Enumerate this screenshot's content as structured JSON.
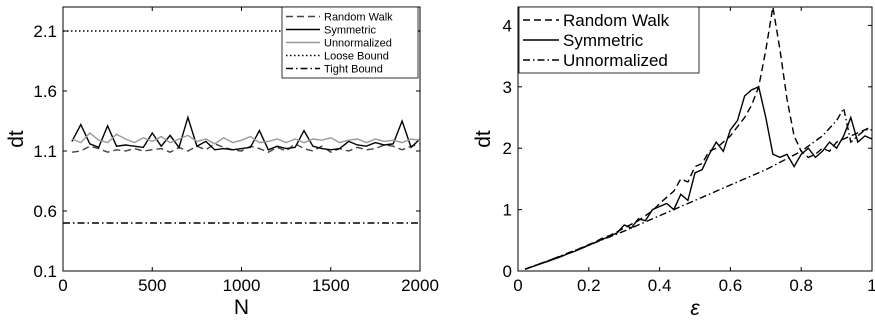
{
  "chart_data": [
    {
      "type": "line",
      "xlabel": "N",
      "ylabel": "dt",
      "xlim": [
        0,
        2000
      ],
      "ylim": [
        0.1,
        2.3
      ],
      "xticks": [
        "0",
        "500",
        "1000",
        "1500",
        "2000"
      ],
      "yticks": [
        "0.1",
        "0.6",
        "1.1",
        "1.6",
        "2.1"
      ],
      "legend_position": "top-right",
      "grid": false,
      "series": [
        {
          "name": "Random Walk",
          "style": "dashed",
          "color": "#444444",
          "x": [
            50,
            100,
            150,
            200,
            250,
            300,
            350,
            400,
            450,
            500,
            550,
            600,
            650,
            700,
            750,
            800,
            850,
            900,
            950,
            1000,
            1050,
            1100,
            1150,
            1200,
            1250,
            1300,
            1350,
            1400,
            1450,
            1500,
            1550,
            1600,
            1650,
            1700,
            1750,
            1800,
            1850,
            1900,
            1950,
            2000
          ],
          "y": [
            1.09,
            1.1,
            1.14,
            1.12,
            1.09,
            1.11,
            1.1,
            1.12,
            1.1,
            1.11,
            1.12,
            1.09,
            1.13,
            1.1,
            1.14,
            1.11,
            1.16,
            1.13,
            1.11,
            1.1,
            1.14,
            1.12,
            1.09,
            1.13,
            1.1,
            1.16,
            1.12,
            1.1,
            1.14,
            1.09,
            1.12,
            1.1,
            1.13,
            1.11,
            1.12,
            1.15,
            1.14,
            1.11,
            1.14,
            1.16
          ]
        },
        {
          "name": "Symmetric",
          "style": "solid",
          "color": "#000000",
          "x": [
            50,
            100,
            150,
            200,
            250,
            300,
            350,
            400,
            450,
            500,
            550,
            600,
            650,
            700,
            750,
            800,
            850,
            900,
            950,
            1000,
            1050,
            1100,
            1150,
            1200,
            1250,
            1300,
            1350,
            1400,
            1450,
            1500,
            1550,
            1600,
            1650,
            1700,
            1750,
            1800,
            1850,
            1900,
            1950,
            2000
          ],
          "y": [
            1.18,
            1.32,
            1.16,
            1.13,
            1.31,
            1.14,
            1.15,
            1.14,
            1.13,
            1.25,
            1.14,
            1.23,
            1.13,
            1.38,
            1.14,
            1.18,
            1.11,
            1.12,
            1.11,
            1.12,
            1.13,
            1.27,
            1.11,
            1.14,
            1.12,
            1.13,
            1.27,
            1.14,
            1.12,
            1.11,
            1.12,
            1.18,
            1.15,
            1.14,
            1.17,
            1.15,
            1.16,
            1.35,
            1.13,
            1.2
          ]
        },
        {
          "name": "Unnormalized",
          "style": "solid",
          "color": "#999999",
          "x": [
            50,
            100,
            150,
            200,
            250,
            300,
            350,
            400,
            450,
            500,
            550,
            600,
            650,
            700,
            750,
            800,
            850,
            900,
            950,
            1000,
            1050,
            1100,
            1150,
            1200,
            1250,
            1300,
            1350,
            1400,
            1450,
            1500,
            1550,
            1600,
            1650,
            1700,
            1750,
            1800,
            1850,
            1900,
            1950,
            2000
          ],
          "y": [
            1.2,
            1.17,
            1.25,
            1.19,
            1.17,
            1.24,
            1.2,
            1.17,
            1.21,
            1.18,
            1.22,
            1.17,
            1.2,
            1.23,
            1.18,
            1.2,
            1.16,
            1.21,
            1.17,
            1.19,
            1.22,
            1.17,
            1.18,
            1.2,
            1.17,
            1.2,
            1.17,
            1.2,
            1.19,
            1.21,
            1.17,
            1.19,
            1.2,
            1.17,
            1.2,
            1.18,
            1.19,
            1.17,
            1.2,
            1.19
          ]
        },
        {
          "name": "Loose Bound",
          "style": "dotted",
          "color": "#000000",
          "x": [
            0,
            2000
          ],
          "y": [
            2.1,
            2.1
          ]
        },
        {
          "name": "Tight Bound",
          "style": "dashdot",
          "color": "#000000",
          "x": [
            0,
            2000
          ],
          "y": [
            0.5,
            0.5
          ]
        }
      ]
    },
    {
      "type": "line",
      "xlabel": "ε",
      "ylabel": "dt",
      "xlim": [
        0,
        1
      ],
      "ylim": [
        0,
        4.3
      ],
      "xticks": [
        "0",
        "0.2",
        "0.4",
        "0.6",
        "0.8",
        "1"
      ],
      "yticks": [
        "0",
        "1",
        "2",
        "3",
        "4"
      ],
      "legend_position": "top-left",
      "grid": false,
      "series": [
        {
          "name": "Random Walk",
          "style": "dashed",
          "color": "#000000",
          "x": [
            0.02,
            0.04,
            0.06,
            0.08,
            0.1,
            0.12,
            0.14,
            0.16,
            0.18,
            0.2,
            0.22,
            0.24,
            0.26,
            0.28,
            0.3,
            0.32,
            0.34,
            0.36,
            0.38,
            0.4,
            0.42,
            0.44,
            0.46,
            0.48,
            0.5,
            0.52,
            0.54,
            0.56,
            0.58,
            0.6,
            0.62,
            0.64,
            0.66,
            0.68,
            0.7,
            0.72,
            0.74,
            0.76,
            0.78,
            0.8,
            0.82,
            0.84,
            0.86,
            0.88,
            0.9,
            0.92,
            0.94,
            0.96,
            0.98,
            1.0
          ],
          "y": [
            0.03,
            0.07,
            0.11,
            0.15,
            0.2,
            0.24,
            0.29,
            0.33,
            0.38,
            0.43,
            0.48,
            0.54,
            0.58,
            0.64,
            0.7,
            0.76,
            0.82,
            0.9,
            0.98,
            1.1,
            1.2,
            1.3,
            1.5,
            1.45,
            1.7,
            1.75,
            1.95,
            2.0,
            2.1,
            2.2,
            2.35,
            2.5,
            2.7,
            3.0,
            3.6,
            4.3,
            3.6,
            2.8,
            2.2,
            1.95,
            1.85,
            1.9,
            2.0,
            1.95,
            2.1,
            2.15,
            2.2,
            2.25,
            2.3,
            2.35
          ]
        },
        {
          "name": "Symmetric",
          "style": "solid",
          "color": "#000000",
          "x": [
            0.02,
            0.04,
            0.06,
            0.08,
            0.1,
            0.12,
            0.14,
            0.16,
            0.18,
            0.2,
            0.22,
            0.24,
            0.26,
            0.28,
            0.3,
            0.32,
            0.34,
            0.36,
            0.38,
            0.4,
            0.42,
            0.44,
            0.46,
            0.48,
            0.5,
            0.52,
            0.54,
            0.56,
            0.58,
            0.6,
            0.62,
            0.64,
            0.66,
            0.68,
            0.7,
            0.72,
            0.74,
            0.76,
            0.78,
            0.8,
            0.82,
            0.84,
            0.86,
            0.88,
            0.9,
            0.92,
            0.94,
            0.96,
            0.98,
            1.0
          ],
          "y": [
            0.03,
            0.07,
            0.11,
            0.15,
            0.19,
            0.23,
            0.28,
            0.32,
            0.37,
            0.42,
            0.47,
            0.52,
            0.57,
            0.62,
            0.75,
            0.7,
            0.85,
            0.82,
            1.0,
            1.05,
            1.1,
            1.0,
            1.25,
            1.15,
            1.6,
            1.65,
            1.9,
            2.1,
            1.95,
            2.3,
            2.45,
            2.85,
            2.95,
            3.0,
            2.5,
            1.9,
            1.85,
            1.9,
            1.7,
            1.9,
            2.0,
            1.85,
            1.95,
            2.1,
            2.0,
            2.2,
            2.5,
            2.1,
            2.2,
            2.15
          ]
        },
        {
          "name": "Unnormalized",
          "style": "dashdot",
          "color": "#000000",
          "x": [
            0.02,
            0.1,
            0.2,
            0.3,
            0.4,
            0.5,
            0.6,
            0.7,
            0.8,
            0.86,
            0.9,
            0.92,
            0.94,
            0.96,
            0.98,
            1.0
          ],
          "y": [
            0.03,
            0.2,
            0.42,
            0.65,
            0.9,
            1.15,
            1.4,
            1.65,
            1.95,
            2.2,
            2.45,
            2.65,
            2.1,
            2.2,
            2.3,
            2.3
          ]
        }
      ]
    }
  ]
}
